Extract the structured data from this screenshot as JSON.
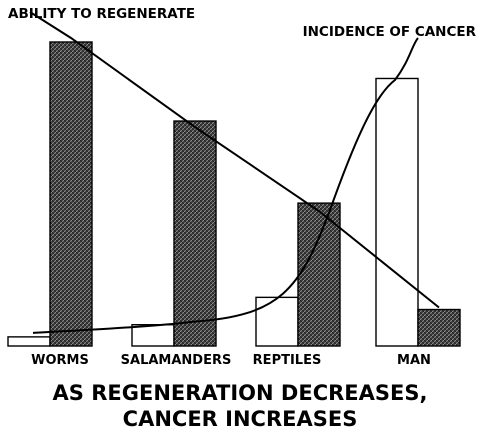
{
  "chart_data": {
    "type": "bar",
    "title": "AS REGENERATION DECREASES, CANCER INCREASES",
    "title_lines": [
      "AS REGENERATION DECREASES,",
      "CANCER INCREASES"
    ],
    "categories": [
      "WORMS",
      "SALAMANDERS",
      "REPTILES",
      "MAN"
    ],
    "xlabel": "",
    "ylabel": "",
    "ylim": [
      0,
      100
    ],
    "grid": false,
    "series": [
      {
        "name": "INCIDENCE OF CANCER",
        "style": "white",
        "values": [
          3,
          7,
          16,
          88
        ]
      },
      {
        "name": "ABILITY TO REGENERATE",
        "style": "hatched",
        "values": [
          100,
          74,
          47,
          12
        ]
      }
    ],
    "annotations": [
      {
        "text": "ABILITY TO REGENERATE",
        "series": "ABILITY TO REGENERATE"
      },
      {
        "text": "INCIDENCE OF CANCER",
        "series": "INCIDENCE OF CANCER"
      }
    ],
    "colors": {
      "ink": "#000000",
      "hatch_fill": "#3a3a3a",
      "background": "#ffffff"
    }
  }
}
